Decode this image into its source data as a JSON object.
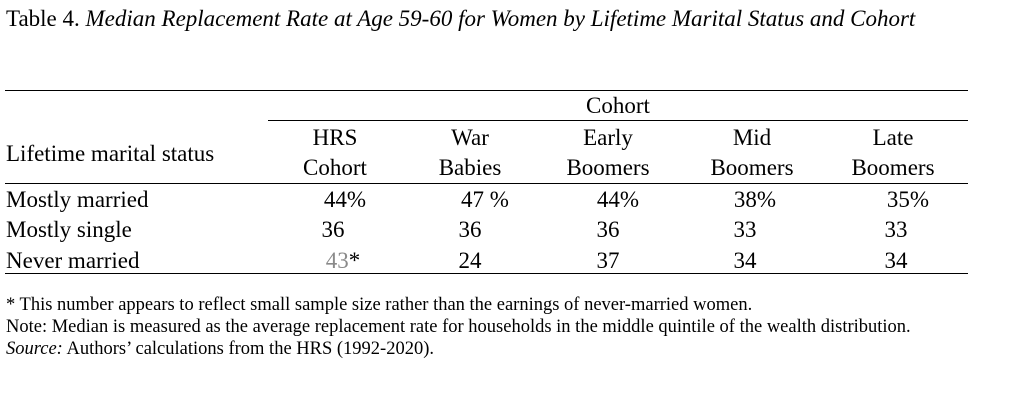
{
  "title": {
    "prefix": "Table 4. ",
    "text": "Median Replacement Rate at Age 59-60 for Women by Lifetime Marital Status and Cohort"
  },
  "table": {
    "stub_header": "Lifetime marital status",
    "group_header": "Cohort",
    "columns": [
      {
        "line1": "HRS",
        "line2": "Cohort"
      },
      {
        "line1": "War",
        "line2": "Babies"
      },
      {
        "line1": "Early",
        "line2": "Boomers"
      },
      {
        "line1": "Mid",
        "line2": "Boomers"
      },
      {
        "line1": "Late",
        "line2": "Boomers"
      }
    ],
    "rows": [
      {
        "label": "Mostly married",
        "values": [
          "44%",
          "47 %",
          "44%",
          "38%",
          "35%"
        ]
      },
      {
        "label": "Mostly single",
        "values": [
          "36",
          "36",
          "36",
          "33",
          "33"
        ]
      },
      {
        "label": "Never married",
        "values": [
          "43",
          "24",
          "37",
          "34",
          "34"
        ],
        "first_marker": "*"
      }
    ]
  },
  "notes": {
    "footnote": "* This number appears to reflect small sample size rather than the earnings of never-married women.",
    "note": "Note: Median is measured as the average replacement rate for households in the middle quintile of the wealth distribution.",
    "source_label": "Source:",
    "source_text": " Authors’ calculations from the HRS (1992-2020)."
  }
}
